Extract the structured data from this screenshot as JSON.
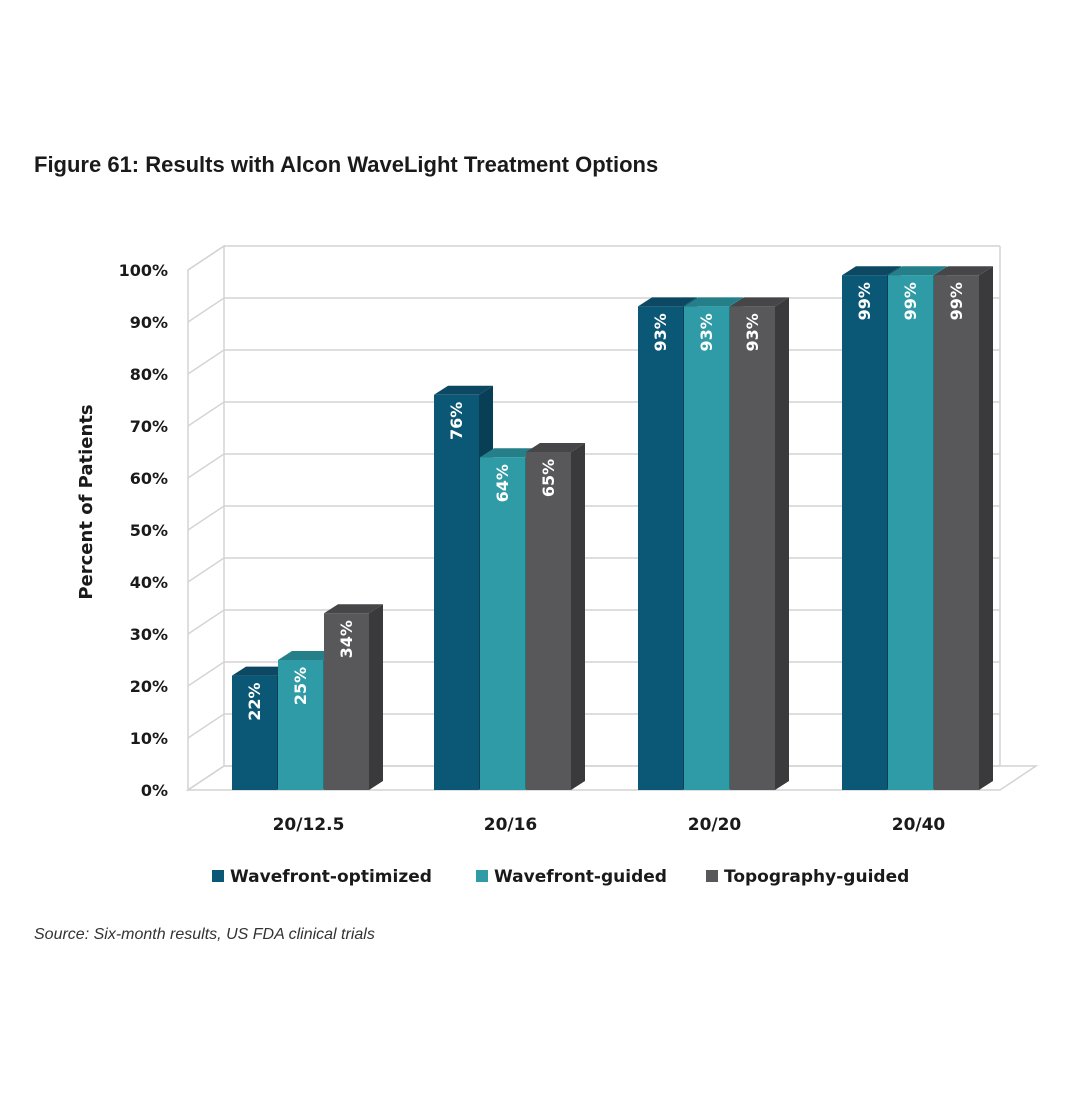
{
  "figure": {
    "title": "Figure 61: Results with Alcon WaveLight Treatment Options",
    "source": "Source: Six-month results, US FDA clinical trials"
  },
  "colors": {
    "Wavefront-optimized": {
      "front": "#0a5876",
      "side": "#083f56",
      "top": "#0d4862"
    },
    "Wavefront-guided": {
      "front": "#2f9ba6",
      "side": "#1f7780",
      "top": "#247f89"
    },
    "Topography-guided": {
      "front": "#58585a",
      "side": "#3a3a3c",
      "top": "#464648"
    },
    "grid": "#d4d4d4",
    "axis_text": "#1a1a1a",
    "bar_label": "#ffffff"
  },
  "chart_data": {
    "type": "bar",
    "title": "Figure 61: Results with Alcon WaveLight Treatment Options",
    "xlabel": "",
    "ylabel": "Percent of Patients",
    "ylim": [
      0,
      100
    ],
    "yticks": [
      "0%",
      "10%",
      "20%",
      "30%",
      "40%",
      "50%",
      "60%",
      "70%",
      "80%",
      "90%",
      "100%"
    ],
    "categories": [
      "20/12.5",
      "20/16",
      "20/20",
      "20/40"
    ],
    "series": [
      {
        "name": "Wavefront-optimized",
        "values": [
          22,
          76,
          93,
          99
        ],
        "labels": [
          "22%",
          "76%",
          "93%",
          "99%"
        ]
      },
      {
        "name": "Wavefront-guided",
        "values": [
          25,
          64,
          93,
          99
        ],
        "labels": [
          "25%",
          "64%",
          "93%",
          "99%"
        ]
      },
      {
        "name": "Topography-guided",
        "values": [
          34,
          65,
          93,
          99
        ],
        "labels": [
          "34%",
          "65%",
          "93%",
          "99%"
        ]
      }
    ],
    "legend_position": "bottom",
    "grid": true,
    "style": "3d-clustered-column"
  }
}
